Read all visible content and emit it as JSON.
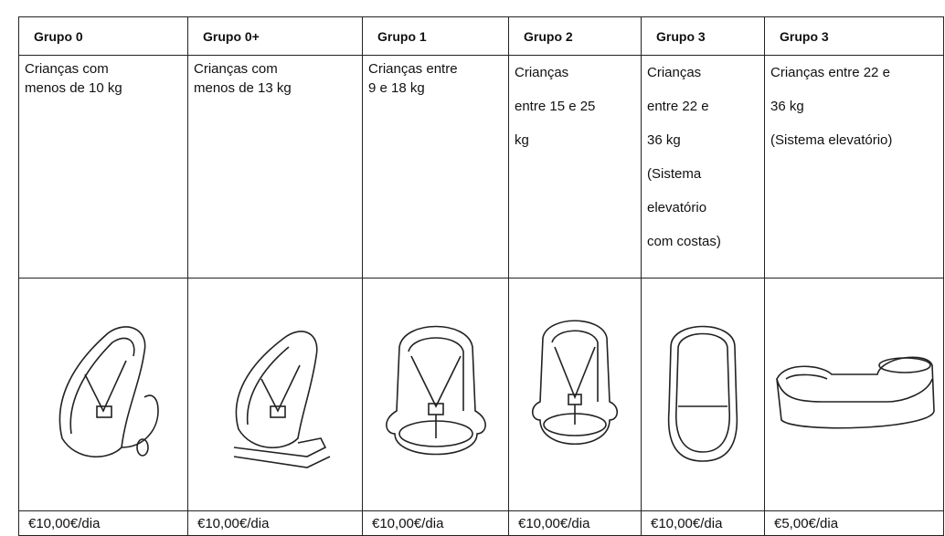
{
  "table": {
    "columns": [
      {
        "header": "Grupo 0",
        "description": [
          "Crianças com",
          "menos de 10 kg"
        ],
        "price": "€10,00€/dia"
      },
      {
        "header": "Grupo 0+",
        "description": [
          "Crianças com",
          "menos de 13 kg"
        ],
        "price": "€10,00€/dia"
      },
      {
        "header": "Grupo 1",
        "description": [
          "Crianças entre",
          "9 e 18 kg"
        ],
        "price": "€10,00€/dia"
      },
      {
        "header": "Grupo 2",
        "description": [
          "Crianças",
          "entre 15 e 25",
          "kg"
        ],
        "price": "€10,00€/dia"
      },
      {
        "header": "Grupo 3",
        "description": [
          "Crianças",
          "entre 22 e",
          "36 kg",
          "(Sistema",
          "elevatório",
          "com costas)"
        ],
        "price": "€10,00€/dia"
      },
      {
        "header": "Grupo 3",
        "description": [
          "Crianças entre 22 e",
          "36 kg",
          "(Sistema elevatório)"
        ],
        "price": "€5,00€/dia"
      }
    ]
  }
}
